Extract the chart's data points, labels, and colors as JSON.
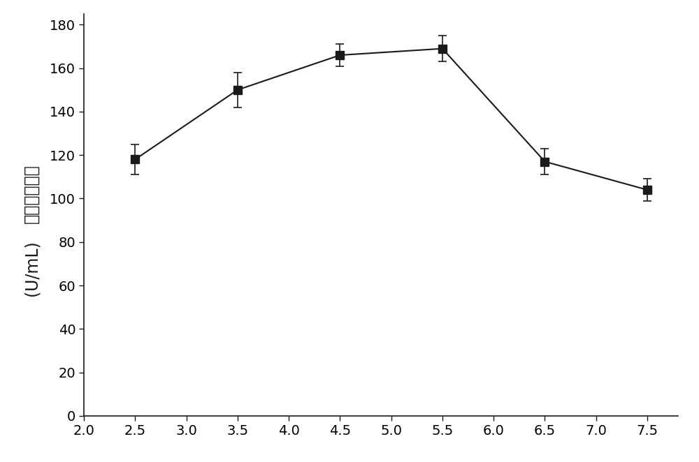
{
  "x": [
    2.5,
    3.5,
    4.5,
    5.5,
    6.5,
    7.5
  ],
  "y": [
    118,
    150,
    166,
    169,
    117,
    104
  ],
  "yerr": [
    7,
    8,
    5,
    6,
    6,
    5
  ],
  "ylabel_line1": "生淠粉酶产量",
  "ylabel_line2": "(U/mL)",
  "xlim": [
    2.0,
    7.8
  ],
  "ylim": [
    0,
    185
  ],
  "xticks": [
    2.0,
    2.5,
    3.0,
    3.5,
    4.0,
    4.5,
    5.0,
    5.5,
    6.0,
    6.5,
    7.0,
    7.5
  ],
  "yticks": [
    0,
    20,
    40,
    60,
    80,
    100,
    120,
    140,
    160,
    180
  ],
  "line_color": "#1a1a1a",
  "marker": "s",
  "marker_color": "#1a1a1a",
  "marker_size": 8,
  "line_width": 1.5,
  "background_color": "#ffffff",
  "tick_fontsize": 14,
  "ylabel_fontsize": 17
}
